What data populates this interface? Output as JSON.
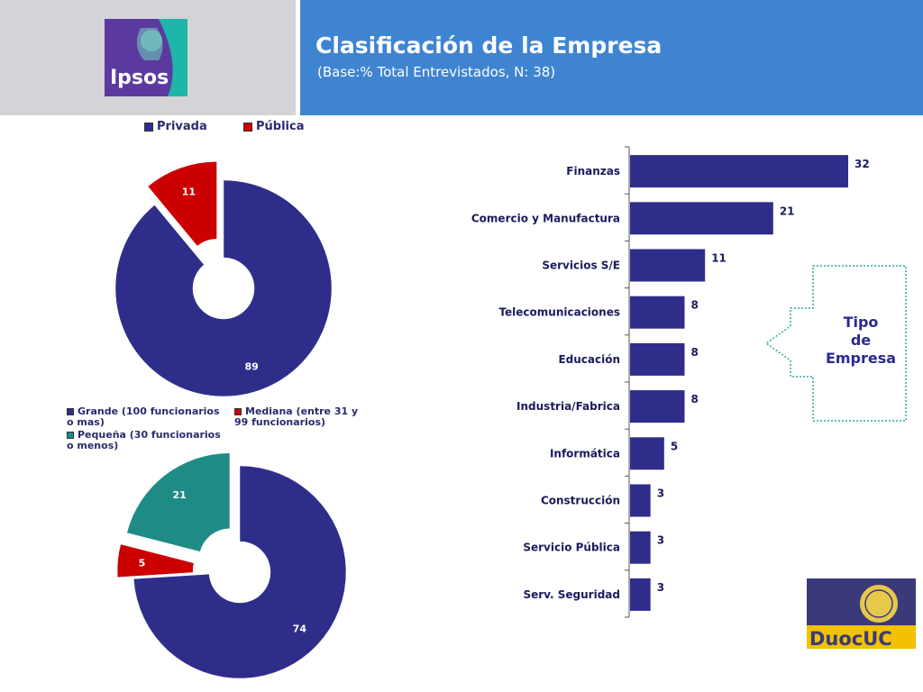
{
  "header": {
    "logo_text": "Ipsos",
    "title": "Clasificación de la Empresa",
    "subtitle": "(Base:% Total Entrevistados, N: 38)"
  },
  "colors": {
    "privada": "#2e2e8a",
    "publica": "#cc0000",
    "grande": "#2e2e8a",
    "mediana": "#cc0000",
    "pequena": "#1e8c84",
    "bar": "#2e2e8a",
    "header_blue": "#3f84d0",
    "header_gray": "#d3d3d8"
  },
  "legend_top": {
    "privada": "Privada",
    "publica": "Pública"
  },
  "legend_mid": {
    "grande": "Grande (100 funcionarios o mas)",
    "mediana": "Mediana (entre 31 y 99 funcionarios)",
    "pequena": "Pequeña (30 funcionarios o menos)"
  },
  "callout": {
    "line1": "Tipo",
    "line2": "de",
    "line3": "Empresa"
  },
  "duoc_logo": "DuocUC",
  "chart_data": [
    {
      "type": "pie",
      "style": "donut",
      "labels": [
        "Privada",
        "Pública"
      ],
      "values": [
        89,
        11
      ],
      "legend": "top"
    },
    {
      "type": "pie",
      "style": "donut",
      "labels": [
        "Grande (100 funcionarios o mas)",
        "Mediana (entre 31 y 99 funcionarios)",
        "Pequeña (30 funcionarios o menos)"
      ],
      "values": [
        74,
        5,
        21
      ],
      "legend": "top"
    },
    {
      "type": "bar",
      "orientation": "horizontal",
      "categories": [
        "Finanzas",
        "Comercio y Manufactura",
        "Servicios S/E",
        "Telecomunicaciones",
        "Educación",
        "Industria/Fabrica",
        "Informática",
        "Construcción",
        "Servicio Pública",
        "Serv. Seguridad"
      ],
      "values": [
        32,
        21,
        11,
        8,
        8,
        8,
        5,
        3,
        3,
        3
      ],
      "xlim": [
        0,
        35
      ],
      "grid": false
    }
  ]
}
